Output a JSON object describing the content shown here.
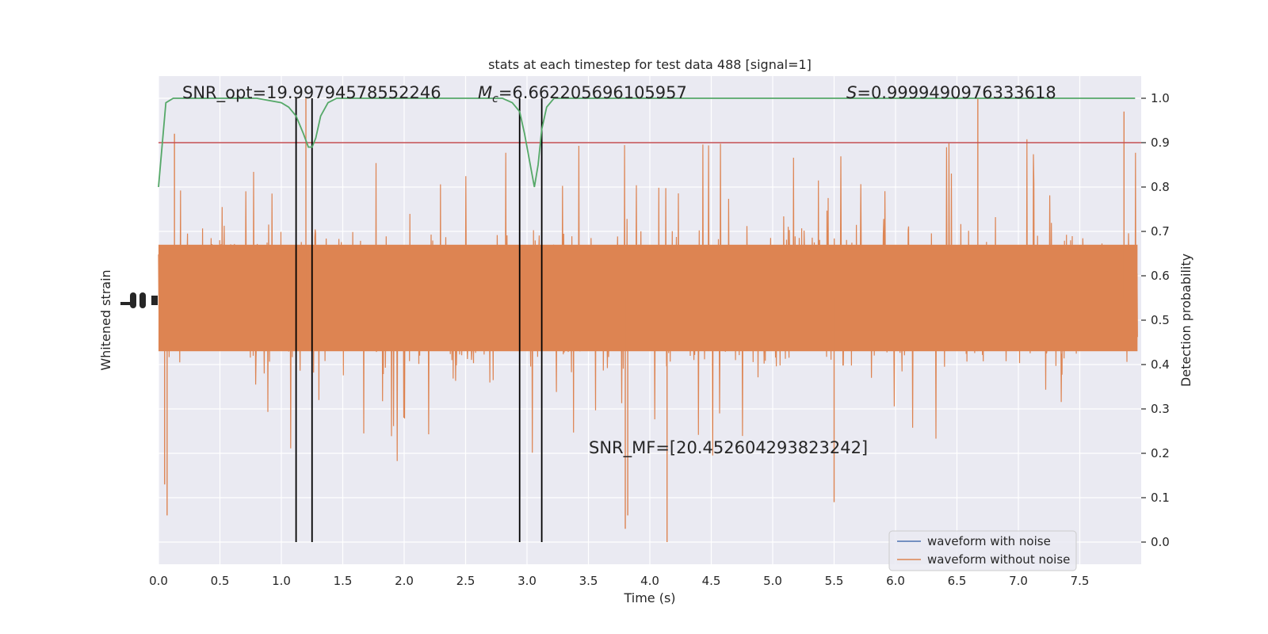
{
  "chart_data": {
    "type": "line",
    "title": "stats at each timestep for test data 488 [signal=1]",
    "xlabel": "Time (s)",
    "ylabel_left": "Whitened strain",
    "ylabel_right": "Detection probability",
    "xlim": [
      0.0,
      8.0
    ],
    "ylim_right": [
      -0.05,
      1.05
    ],
    "x_ticks": [
      "0.0",
      "0.5",
      "1.0",
      "1.5",
      "2.0",
      "2.5",
      "3.0",
      "3.5",
      "4.0",
      "4.5",
      "5.0",
      "5.5",
      "6.0",
      "6.5",
      "7.0",
      "7.5"
    ],
    "x_tick_values": [
      0.0,
      0.5,
      1.0,
      1.5,
      2.0,
      2.5,
      3.0,
      3.5,
      4.0,
      4.5,
      5.0,
      5.5,
      6.0,
      6.5,
      7.0,
      7.5
    ],
    "right_ticks": [
      "0.0",
      "0.1",
      "0.2",
      "0.3",
      "0.4",
      "0.5",
      "0.6",
      "0.7",
      "0.8",
      "0.9",
      "1.0"
    ],
    "right_tick_values": [
      0.0,
      0.1,
      0.2,
      0.3,
      0.4,
      0.5,
      0.6,
      0.7,
      0.8,
      0.9,
      1.0
    ],
    "grid": true,
    "legend_position": "lower-right",
    "annotations": {
      "snr_opt": "SNR_opt=19.99794578552246",
      "mc_prefix": "M",
      "mc_sub": "c",
      "mc_value": "=6.662205696105957",
      "s_prefix": "S",
      "s_value": "=0.9999490976333618",
      "snr_mf": "SNR_MF=[20.452604293823242]"
    },
    "threshold": 0.9,
    "vertical_lines_x": [
      1.12,
      1.25,
      2.94,
      3.12
    ],
    "detection_probability": {
      "x": [
        0.0,
        0.06,
        0.12,
        0.5,
        0.8,
        1.0,
        1.06,
        1.12,
        1.18,
        1.22,
        1.25,
        1.28,
        1.32,
        1.38,
        1.45,
        1.55,
        2.0,
        2.5,
        2.8,
        2.88,
        2.94,
        2.98,
        3.02,
        3.06,
        3.09,
        3.12,
        3.16,
        3.22,
        3.4,
        4.0,
        5.0,
        6.0,
        7.0,
        7.95
      ],
      "y": [
        0.8,
        0.99,
        1.0,
        1.0,
        1.0,
        0.99,
        0.98,
        0.96,
        0.92,
        0.89,
        0.89,
        0.91,
        0.96,
        0.99,
        1.0,
        1.0,
        1.0,
        1.0,
        1.0,
        0.99,
        0.97,
        0.92,
        0.86,
        0.8,
        0.85,
        0.93,
        0.98,
        1.0,
        1.0,
        1.0,
        1.0,
        1.0,
        1.0,
        1.0
      ]
    },
    "waveform_without_noise": {
      "center": 0.55,
      "core_halfwidth": 0.12,
      "deep_dips": [
        {
          "x": 0.05,
          "y": 0.13
        },
        {
          "x": 0.07,
          "y": 0.06
        },
        {
          "x": 3.8,
          "y": 0.03
        },
        {
          "x": 3.82,
          "y": 0.06
        },
        {
          "x": 4.14,
          "y": 0.0
        },
        {
          "x": 5.5,
          "y": 0.09
        }
      ],
      "tall_peaks": [
        {
          "x": 1.2,
          "y": 1.0
        },
        {
          "x": 1.25,
          "y": 1.0
        },
        {
          "x": 6.67,
          "y": 1.0
        },
        {
          "x": 7.86,
          "y": 0.97
        },
        {
          "x": 0.13,
          "y": 0.92
        }
      ]
    },
    "series": [
      {
        "name": "waveform with noise",
        "color": "#4c72b0"
      },
      {
        "name": "waveform without noise",
        "color": "#dd8452"
      }
    ],
    "colors": {
      "background": "#eaeaf2",
      "grid": "#ffffff",
      "probability": "#55a868",
      "threshold": "#c44e52",
      "vlines": "#000000"
    }
  }
}
